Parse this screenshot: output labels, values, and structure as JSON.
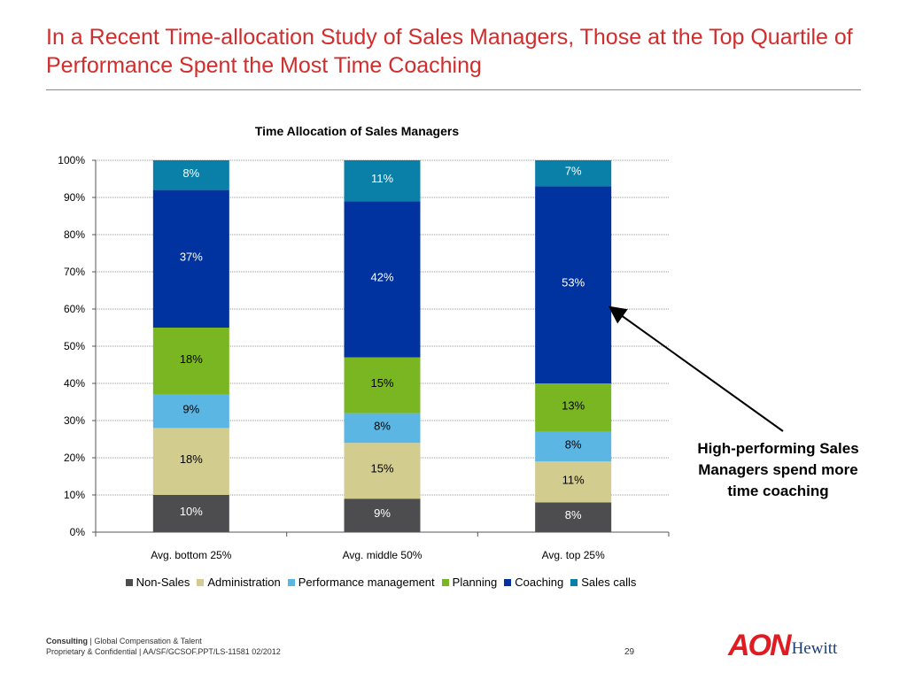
{
  "slide": {
    "title": "In a Recent Time-allocation Study of Sales Managers, Those at the Top Quartile of Performance Spent the Most Time Coaching"
  },
  "callout": {
    "text": "High-performing Sales Managers spend more time coaching"
  },
  "footer": {
    "brand": "Consulting",
    "line1_rest": "|  Global Compensation & Talent",
    "line2": "Proprietary & Confidential   |  AA/SF/GCSOF.PPT/LS-11581  02/2012",
    "page_number": "29"
  },
  "logo": {
    "primary": "AON",
    "secondary": "Hewitt"
  },
  "chart_data": {
    "type": "bar",
    "stacked": true,
    "title": "Time Allocation of Sales Managers",
    "categories": [
      "Avg. bottom 25%",
      "Avg. middle 50%",
      "Avg. top 25%"
    ],
    "series": [
      {
        "name": "Non-Sales",
        "values": [
          10,
          9,
          8
        ],
        "labels": [
          "10%",
          "9%",
          "8%"
        ],
        "color": "#4d4d4f",
        "label_color": "#ffffff"
      },
      {
        "name": "Administration",
        "values": [
          18,
          15,
          11
        ],
        "labels": [
          "18%",
          "15%",
          "11%"
        ],
        "color": "#d3cc8f",
        "label_color": "#000000"
      },
      {
        "name": "Performance management",
        "values": [
          9,
          8,
          8
        ],
        "labels": [
          "9%",
          "8%",
          "8%"
        ],
        "color": "#5bb6e3",
        "label_color": "#000000"
      },
      {
        "name": "Planning",
        "values": [
          18,
          15,
          13
        ],
        "labels": [
          "18%",
          "15%",
          "13%"
        ],
        "color": "#7ab621",
        "label_color": "#000000"
      },
      {
        "name": "Coaching",
        "values": [
          37,
          42,
          53
        ],
        "labels": [
          "37%",
          "42%",
          "53%"
        ],
        "color": "#0033a0",
        "label_color": "#ffffff"
      },
      {
        "name": "Sales calls",
        "values": [
          8,
          11,
          7
        ],
        "labels": [
          "8%",
          "11%",
          "7%"
        ],
        "color": "#0a7fa8",
        "label_color": "#ffffff"
      }
    ],
    "ylim": [
      0,
      100
    ],
    "yticks": [
      "0%",
      "10%",
      "20%",
      "30%",
      "40%",
      "50%",
      "60%",
      "70%",
      "80%",
      "90%",
      "100%"
    ],
    "grid": true,
    "legend_position": "bottom"
  }
}
